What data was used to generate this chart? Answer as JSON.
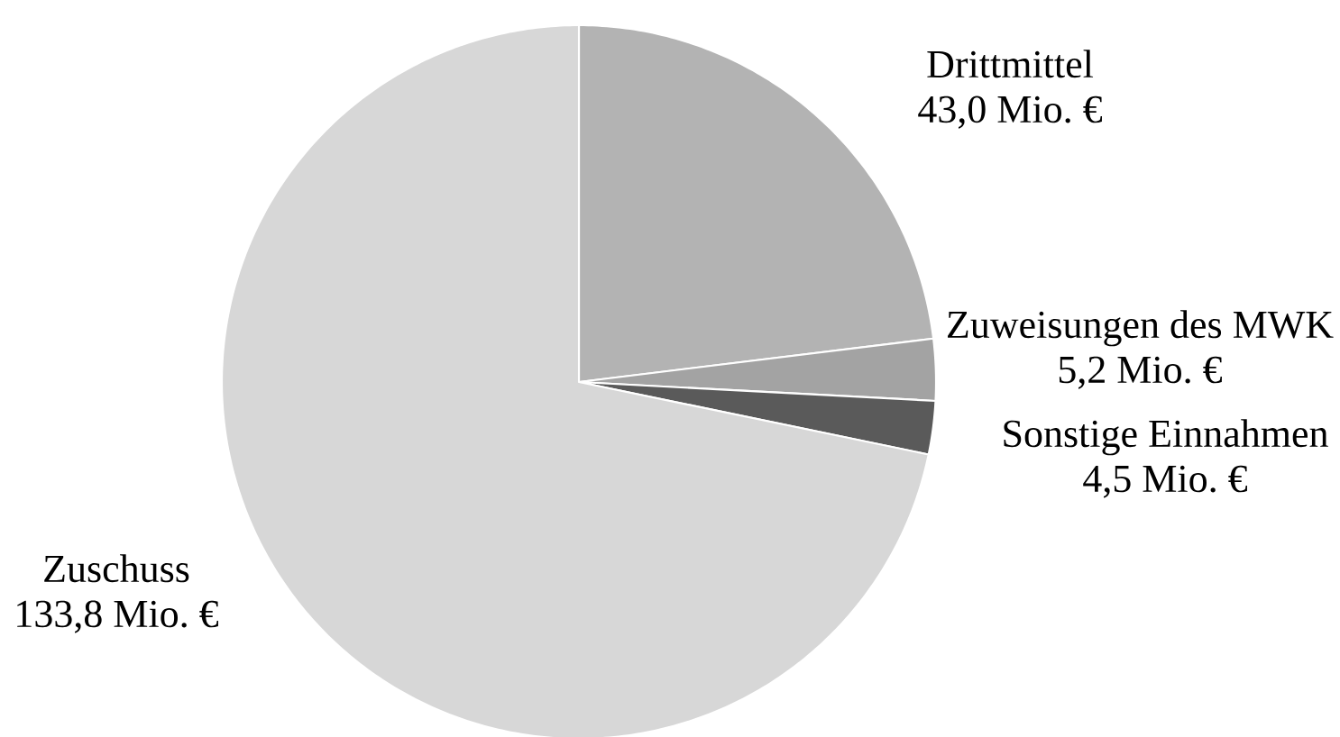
{
  "chart_data": {
    "type": "pie",
    "categories": [
      "Drittmittel",
      "Zuweisungen des MWK",
      "Sonstige Einnahmen",
      "Zuschuss"
    ],
    "values": [
      43.0,
      5.2,
      4.5,
      133.8
    ],
    "colors": [
      "#b3b3b3",
      "#a3a3a3",
      "#5a5a5a",
      "#d7d7d7"
    ],
    "value_labels": [
      "43,0 Mio. €",
      "5,2 Mio. €",
      "4,5 Mio. €",
      "133,8 Mio. €"
    ]
  }
}
